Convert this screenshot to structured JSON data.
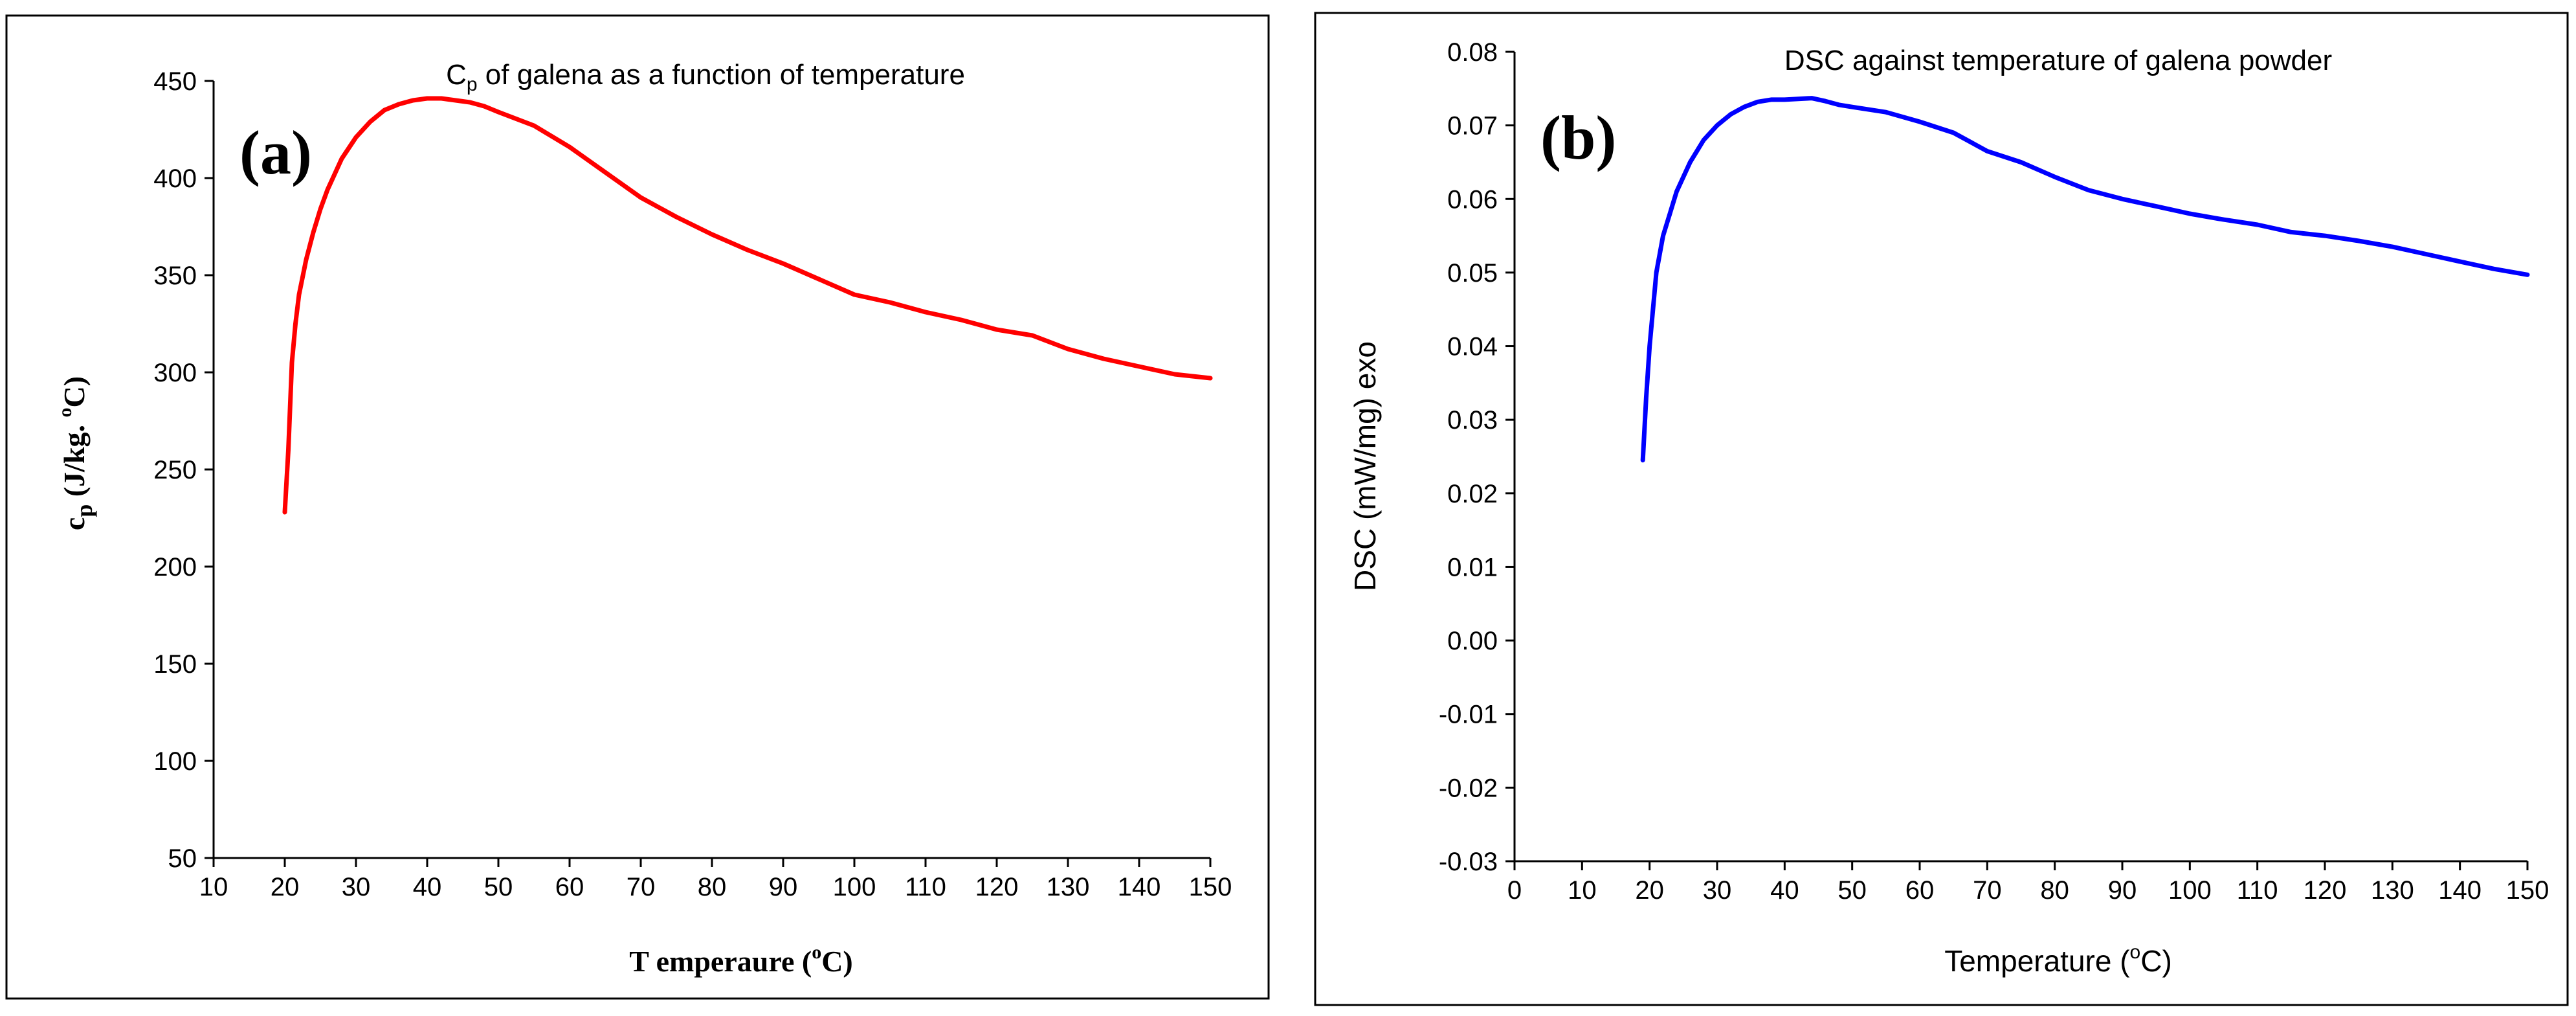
{
  "chart_data": [
    {
      "type": "line",
      "panel_label": "(a)",
      "title_prefix": "C",
      "title_subscript": "p",
      "title_rest": " of galena as a function of temperature",
      "xlabel_main": "T emperaure (",
      "xlabel_sup": "o",
      "xlabel_tail": "C)",
      "ylabel_main": "c",
      "ylabel_sub": "p",
      "ylabel_rest": " (J/kg. ",
      "ylabel_sup": "o",
      "ylabel_tail": "C)",
      "xlim": [
        10,
        150
      ],
      "ylim": [
        50,
        450
      ],
      "xticks": [
        "10",
        "20",
        "30",
        "40",
        "50",
        "60",
        "70",
        "80",
        "90",
        "100",
        "110",
        "120",
        "130",
        "140",
        "150"
      ],
      "yticks": [
        "50",
        "100",
        "150",
        "200",
        "250",
        "300",
        "350",
        "400",
        "450"
      ],
      "series": [
        {
          "name": "Cp",
          "color": "#ff0000",
          "x": [
            20,
            20.5,
            21,
            21.5,
            22,
            23,
            24,
            25,
            26,
            28,
            30,
            32,
            34,
            36,
            38,
            40,
            42,
            44,
            46,
            48,
            50,
            55,
            60,
            65,
            70,
            75,
            80,
            85,
            90,
            95,
            100,
            105,
            110,
            115,
            120,
            125,
            130,
            135,
            140,
            145,
            150
          ],
          "y": [
            228,
            260,
            305,
            325,
            340,
            358,
            372,
            384,
            394,
            410,
            421,
            429,
            435,
            438,
            440,
            441,
            441,
            440,
            439,
            437,
            434,
            427,
            416,
            403,
            390,
            380,
            371,
            363,
            356,
            348,
            340,
            336,
            331,
            327,
            322,
            319,
            312,
            307,
            303,
            299,
            297
          ]
        }
      ]
    },
    {
      "type": "line",
      "panel_label": "(b)",
      "title": "DSC against temperature of galena powder",
      "xlabel_main": "Temperature (",
      "xlabel_sup": "o",
      "xlabel_tail": "C)",
      "ylabel": "DSC (mW/mg) exo",
      "xlim": [
        0,
        150
      ],
      "ylim": [
        -0.03,
        0.08
      ],
      "xticks": [
        "0",
        "10",
        "20",
        "30",
        "40",
        "50",
        "60",
        "70",
        "80",
        "90",
        "100",
        "110",
        "120",
        "130",
        "140",
        "150"
      ],
      "yticks": [
        "-0.03",
        "-0.02",
        "-0.01",
        "0.00",
        "0.01",
        "0.02",
        "0.03",
        "0.04",
        "0.05",
        "0.06",
        "0.07",
        "0.08"
      ],
      "series": [
        {
          "name": "DSC",
          "color": "#0000ff",
          "x": [
            19,
            19.5,
            20,
            20.5,
            21,
            22,
            23,
            24,
            26,
            28,
            30,
            32,
            34,
            36,
            38,
            40,
            42,
            44,
            46,
            48,
            50,
            55,
            60,
            65,
            70,
            75,
            80,
            85,
            90,
            95,
            100,
            105,
            110,
            115,
            120,
            125,
            130,
            135,
            140,
            145,
            150
          ],
          "y": [
            0.0245,
            0.033,
            0.04,
            0.045,
            0.05,
            0.055,
            0.058,
            0.061,
            0.065,
            0.068,
            0.07,
            0.0715,
            0.0725,
            0.0732,
            0.0735,
            0.0735,
            0.0736,
            0.0737,
            0.0733,
            0.0728,
            0.0725,
            0.0718,
            0.0705,
            0.069,
            0.0665,
            0.065,
            0.063,
            0.0612,
            0.06,
            0.059,
            0.058,
            0.0572,
            0.0565,
            0.0555,
            0.055,
            0.0543,
            0.0535,
            0.0525,
            0.0515,
            0.0505,
            0.0497
          ]
        }
      ]
    }
  ]
}
